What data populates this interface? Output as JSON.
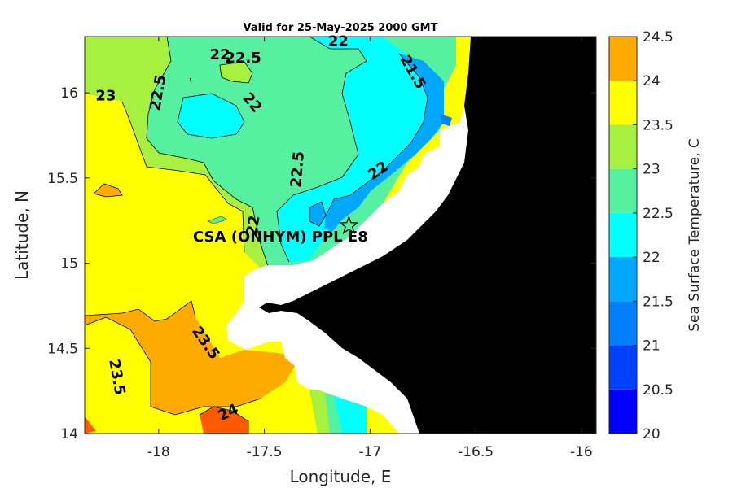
{
  "chart_data": {
    "type": "heatmap",
    "subtype": "filled-contour-map",
    "title": "Valid for 25-May-2025 2000 GMT",
    "xlabel": "Longitude, E",
    "ylabel": "Latitude, N",
    "xlim": [
      -18.35,
      -15.93
    ],
    "ylim": [
      14.0,
      16.33
    ],
    "x_ticks": [
      -18,
      -17.5,
      -17,
      -16.5,
      -16
    ],
    "x_tick_labels": [
      "-18",
      "-17.5",
      "-17",
      "-16.5",
      "-16"
    ],
    "y_ticks": [
      14,
      14.5,
      15,
      15.5,
      16
    ],
    "y_tick_labels": [
      "14",
      "14.5",
      "15",
      "15.5",
      "16"
    ],
    "colorbar": {
      "label": "Sea Surface Temperature, C",
      "levels": [
        20,
        20.5,
        21,
        21.5,
        22,
        22.5,
        23,
        23.5,
        24,
        24.5
      ],
      "tick_labels": [
        "20",
        "20.5",
        "21",
        "21.5",
        "22",
        "22.5",
        "23",
        "23.5",
        "24",
        "24.5"
      ],
      "colors": [
        "#0000ff",
        "#0040ff",
        "#0080ff",
        "#00a8ff",
        "#00ffff",
        "#55f0a0",
        "#a8f040",
        "#ffff00",
        "#ffaa00",
        "#ff5a00"
      ]
    },
    "land_color": "#000000",
    "nodata_color": "#ffffff",
    "contour_labels": [
      {
        "text": "22",
        "lon": -17.71,
        "lat": 16.22,
        "rot": 0
      },
      {
        "text": "22.5",
        "lon": -17.6,
        "lat": 16.2,
        "rot": 0
      },
      {
        "text": "22",
        "lon": -17.15,
        "lat": 16.3,
        "rot": 0
      },
      {
        "text": "21.5",
        "lon": -16.8,
        "lat": 16.12,
        "rot": 60
      },
      {
        "text": "23",
        "lon": -18.25,
        "lat": 15.98,
        "rot": 0
      },
      {
        "text": "22.5",
        "lon": -18.0,
        "lat": 16.0,
        "rot": -80
      },
      {
        "text": "22",
        "lon": -17.56,
        "lat": 15.94,
        "rot": 50
      },
      {
        "text": "22.5",
        "lon": -17.34,
        "lat": 15.55,
        "rot": -85
      },
      {
        "text": "22",
        "lon": -16.96,
        "lat": 15.54,
        "rot": -35
      },
      {
        "text": "22",
        "lon": -17.55,
        "lat": 15.22,
        "rot": -80
      },
      {
        "text": "23.5",
        "lon": -17.78,
        "lat": 14.53,
        "rot": 55
      },
      {
        "text": "23.5",
        "lon": -18.2,
        "lat": 14.33,
        "rot": 80
      },
      {
        "text": "24",
        "lon": -17.67,
        "lat": 14.12,
        "rot": -25
      }
    ],
    "marker": {
      "symbol": "star",
      "lon": -17.1,
      "lat": 15.22
    },
    "annotation": "CSA (ONHYM) PPL E8"
  }
}
